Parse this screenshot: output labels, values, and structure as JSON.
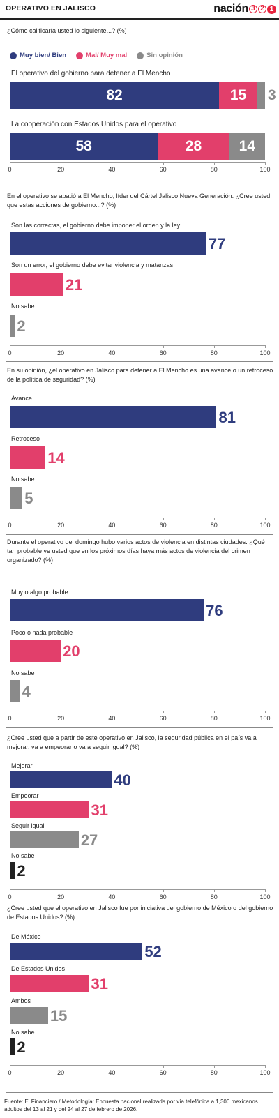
{
  "header": {
    "title": "OPERATIVO EN JALISCO",
    "logo_word": "nación",
    "logo_digits": [
      "3",
      "2",
      "1"
    ]
  },
  "colors": {
    "blue": "#2f3c7e",
    "pink": "#e23f6b",
    "gray": "#8a8a8a",
    "dark": "#222222"
  },
  "chart_data": [
    {
      "type": "bar",
      "orientation": "horizontal-stacked",
      "question": "¿Cómo calificaría usted lo siguiente...? (%)",
      "legend": [
        {
          "name": "Muy bien/ Bien",
          "color": "#2f3c7e"
        },
        {
          "name": "Mal/ Muy mal",
          "color": "#e23f6b"
        },
        {
          "name": "Sin opinión",
          "color": "#8a8a8a"
        }
      ],
      "categories": [
        "El operativo del gobierno para detener a El Mencho",
        "La cooperación con Estados Unidos para el operativo"
      ],
      "series": [
        {
          "name": "Muy bien/ Bien",
          "values": [
            82,
            58
          ]
        },
        {
          "name": "Mal/ Muy mal",
          "values": [
            15,
            28
          ]
        },
        {
          "name": "Sin opinión",
          "values": [
            3,
            14
          ]
        }
      ],
      "xlim": [
        0,
        100
      ],
      "ticks": [
        0,
        20,
        40,
        60,
        80,
        100
      ]
    },
    {
      "type": "bar",
      "orientation": "horizontal",
      "question": "En el operativo se abatió a El Mencho, líder del Cártel Jalisco Nueva Generación. ¿Cree usted que estas acciones de gobierno...? (%)",
      "categories": [
        "Son las correctas, el gobierno debe imponer el orden y la ley",
        "Son un error, el gobierno debe evitar violencia y matanzas",
        "No sabe"
      ],
      "values": [
        77,
        21,
        2
      ],
      "colors": [
        "#2f3c7e",
        "#e23f6b",
        "#8a8a8a"
      ],
      "xlim": [
        0,
        100
      ],
      "ticks": [
        0,
        20,
        40,
        60,
        80,
        100
      ]
    },
    {
      "type": "bar",
      "orientation": "horizontal",
      "question": "En su opinión, ¿el operativo en Jalisco para detener a El Mencho es una avance o un retroceso de la política de seguridad? (%)",
      "categories": [
        "Avance",
        "Retroceso",
        "No sabe"
      ],
      "values": [
        81,
        14,
        5
      ],
      "colors": [
        "#2f3c7e",
        "#e23f6b",
        "#8a8a8a"
      ],
      "xlim": [
        0,
        100
      ],
      "ticks": [
        0,
        20,
        40,
        60,
        80,
        100
      ]
    },
    {
      "type": "bar",
      "orientation": "horizontal",
      "question": "Durante el operativo del domingo hubo varios actos de violencia en distintas ciudades. ¿Qué tan probable ve usted que en los próximos días haya más actos de violencia del crimen organizado? (%)",
      "categories": [
        "Muy o algo probable",
        "Poco o nada probable",
        "No sabe"
      ],
      "values": [
        76,
        20,
        4
      ],
      "colors": [
        "#2f3c7e",
        "#e23f6b",
        "#8a8a8a"
      ],
      "xlim": [
        0,
        100
      ],
      "ticks": [
        0,
        20,
        40,
        60,
        80,
        100
      ]
    },
    {
      "type": "bar",
      "orientation": "horizontal",
      "question": "¿Cree usted que a partir de este operativo en Jalisco, la seguridad pública en el país va a mejorar, va a empeorar o va a seguir igual? (%)",
      "categories": [
        "Mejorar",
        "Empeorar",
        "Seguir igual",
        "No sabe"
      ],
      "values": [
        40,
        31,
        27,
        2
      ],
      "colors": [
        "#2f3c7e",
        "#e23f6b",
        "#8a8a8a",
        "#222222"
      ],
      "xlim": [
        0,
        100
      ],
      "ticks": [
        0,
        20,
        40,
        60,
        80,
        100
      ]
    },
    {
      "type": "bar",
      "orientation": "horizontal",
      "question": "¿Cree usted que el operativo en Jalisco fue por iniciativa del gobierno de México o del gobierno de Estados Unidos? (%)",
      "categories": [
        "De México",
        "De Estados Unidos",
        "Ambos",
        "No sabe"
      ],
      "values": [
        52,
        31,
        15,
        2
      ],
      "colors": [
        "#2f3c7e",
        "#e23f6b",
        "#8a8a8a",
        "#222222"
      ],
      "xlim": [
        0,
        100
      ],
      "ticks": [
        0,
        20,
        40,
        60,
        80,
        100
      ]
    }
  ],
  "source": "Fuente: El Financiero / Metodología: Encuesta nacional realizada por vía telefónica a 1,300 mexicanos adultos del 13 al 21 y del 24 al 27 de febrero de 2026."
}
